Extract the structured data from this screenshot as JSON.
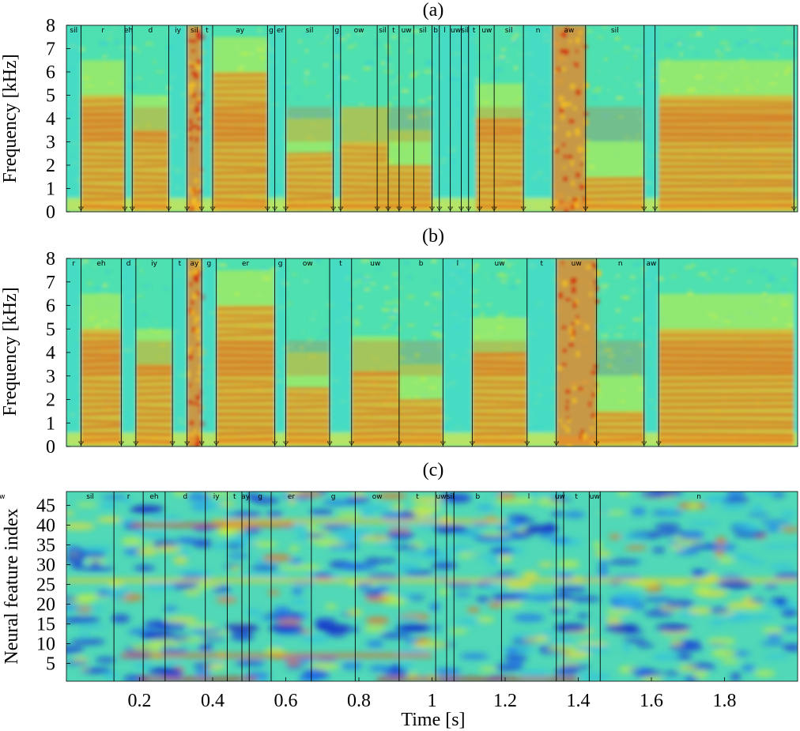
{
  "chart_data": [
    {
      "panel_label": "(a)",
      "type": "heatmap",
      "ylabel": "Frequency [kHz]",
      "y_ticks": [
        "0",
        "1",
        "2",
        "3",
        "4",
        "5",
        "6",
        "7",
        "8"
      ],
      "ylim": [
        0,
        8
      ],
      "colormap": "jet",
      "phone_labels": [
        "sil",
        "r",
        "eh",
        "d",
        "iy",
        "sil",
        "t",
        "ay",
        "g",
        "er",
        "sil",
        "g",
        "ow",
        "sil",
        "t",
        "uw",
        "sil",
        "b",
        "l",
        "uw",
        "sil",
        "t",
        "uw",
        "sil",
        "n",
        "aw",
        "sil"
      ]
    },
    {
      "panel_label": "(b)",
      "type": "heatmap",
      "ylabel": "Frequency [kHz]",
      "y_ticks": [
        "0",
        "1",
        "2",
        "3",
        "4",
        "5",
        "6",
        "7",
        "8"
      ],
      "ylim": [
        0,
        8
      ],
      "colormap": "jet",
      "phone_labels": [
        "r",
        "eh",
        "d",
        "iy",
        "t",
        "ay",
        "g",
        "er",
        "g",
        "ow",
        "t",
        "uw",
        "b",
        "l",
        "uw",
        "t",
        "uw",
        "n",
        "aw"
      ]
    },
    {
      "panel_label": "(c)",
      "type": "heatmap",
      "ylabel": "Neural feature index",
      "xlabel": "Time [s]",
      "y_ticks": [
        "5",
        "10",
        "15",
        "20",
        "25",
        "30",
        "35",
        "40",
        "45"
      ],
      "x_ticks": [
        "0.2",
        "0.4",
        "0.6",
        "0.8",
        "1",
        "1.2",
        "1.4",
        "1.6",
        "1.8"
      ],
      "xlim": [
        0,
        2
      ],
      "colormap": "jet",
      "phone_labels": [
        "sil",
        "r",
        "eh",
        "d",
        "iy",
        "t",
        "ay",
        "g",
        "er",
        "g",
        "ow",
        "t",
        "uw",
        "sil",
        "b",
        "l",
        "uw",
        "t",
        "uw",
        "n",
        "aw"
      ]
    }
  ]
}
